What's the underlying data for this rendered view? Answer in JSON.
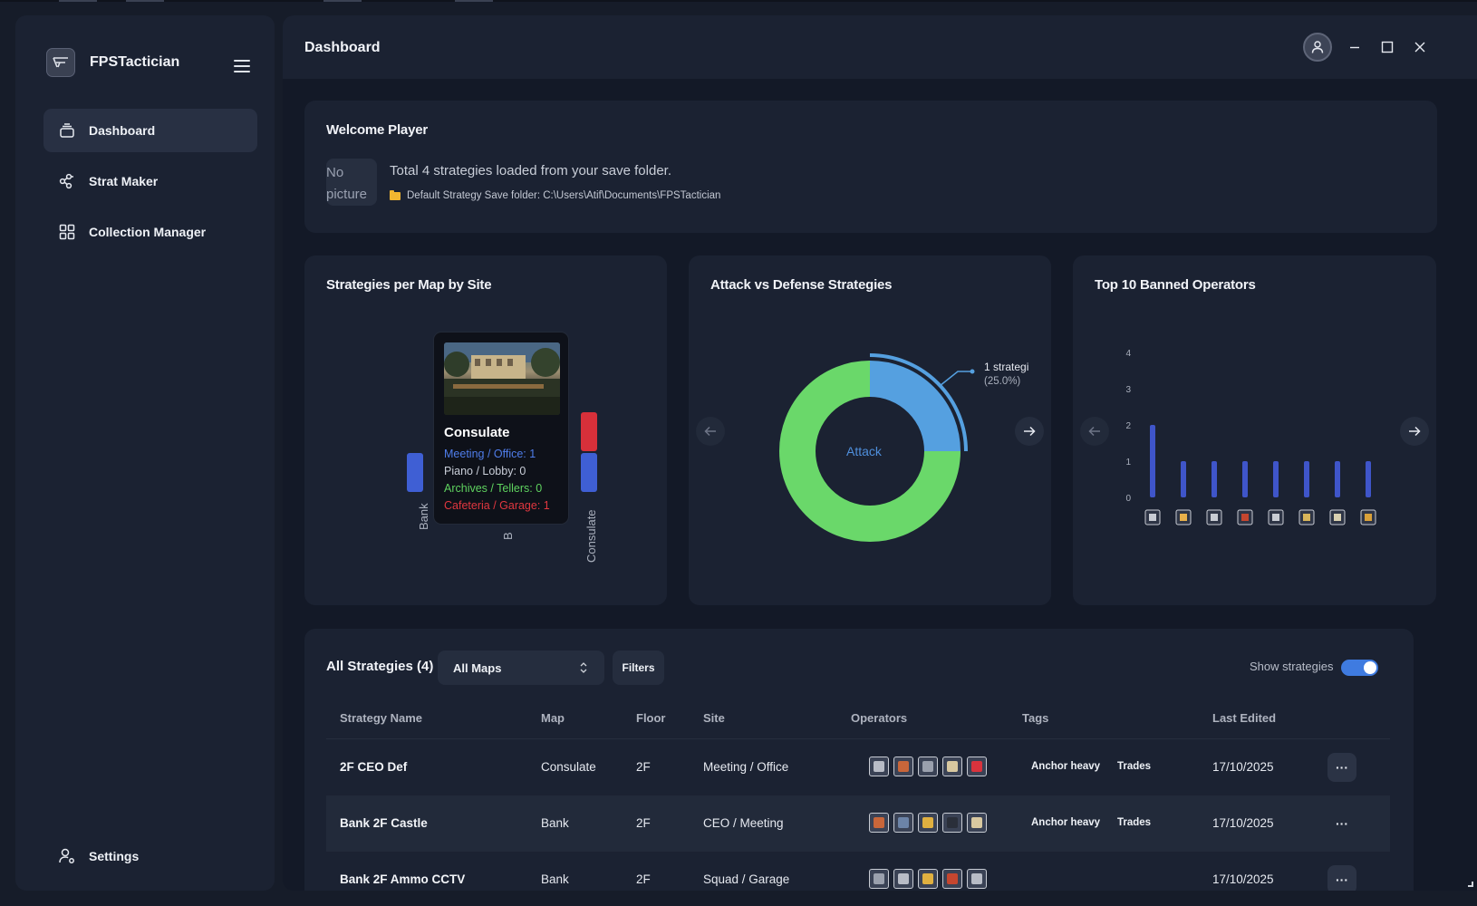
{
  "app": {
    "name": "FPSTactician",
    "page_title": "Dashboard"
  },
  "sidebar": {
    "items": [
      {
        "label": "Dashboard",
        "icon": "stack-icon",
        "active": true
      },
      {
        "label": "Strat Maker",
        "icon": "nodes-icon",
        "active": false
      },
      {
        "label": "Collection Manager",
        "icon": "grid-icon",
        "active": false
      }
    ],
    "settings_label": "Settings"
  },
  "welcome": {
    "title": "Welcome Player",
    "no_picture": "No picture",
    "summary": "Total 4 strategies loaded from your save folder.",
    "folder_text": "Default Strategy Save folder: C:\\Users\\Atif\\Documents\\FPSTactician"
  },
  "map_chart": {
    "title": "Strategies per Map by Site",
    "tooltip": {
      "title": "Consulate",
      "lines": [
        {
          "text": "Meeting / Office: 1",
          "color": "#4f7dea"
        },
        {
          "text": "Piano / Lobby: 0",
          "color": "#c9ced8"
        },
        {
          "text": "Archives / Tellers: 0",
          "color": "#5fd35f"
        },
        {
          "text": "Cafeteria / Garage: 1",
          "color": "#e0373f"
        }
      ]
    },
    "x_labels": [
      "Bank",
      "B",
      "Consulate"
    ]
  },
  "attack_chart": {
    "title": "Attack vs Defense Strategies",
    "center_label": "Attack",
    "callout_line1": "1 strategi",
    "callout_line2": "(25.0%)",
    "colors": {
      "attack": "#55a0e0",
      "defense": "#6ad86a"
    }
  },
  "chart_data": [
    {
      "type": "bar",
      "title": "Strategies per Map by Site",
      "categories": [
        "Bank",
        "B",
        "Consulate"
      ],
      "series": [
        {
          "name": "Meeting / Office",
          "values": [
            1,
            null,
            1
          ]
        },
        {
          "name": "Cafeteria / Garage",
          "values": [
            null,
            null,
            1
          ]
        }
      ]
    },
    {
      "type": "pie",
      "title": "Attack vs Defense Strategies",
      "labels": [
        "Attack",
        "Defense"
      ],
      "values": [
        1,
        3
      ]
    },
    {
      "type": "bar",
      "title": "Top 10 Banned Operators",
      "categories": [
        "op-1",
        "op-2",
        "op-3",
        "op-4",
        "op-5",
        "op-6",
        "op-7",
        "op-8"
      ],
      "values": [
        2,
        1,
        1,
        1,
        1,
        1,
        1,
        1
      ],
      "yticks": [
        "0",
        "1",
        "2",
        "3",
        "4"
      ],
      "ylim": [
        0,
        4
      ]
    }
  ],
  "operators_chart": {
    "title": "Top 10 Banned Operators",
    "bar_color": "#3f55c9",
    "icon_colors": [
      "#c8ccd4",
      "#e8b04a",
      "#c8ccd4",
      "#c5462f",
      "#c8ccd4",
      "#d8b55a",
      "#d8d0b0",
      "#d9a13a"
    ]
  },
  "strategies": {
    "title": "All Strategies (4)",
    "map_select": "All Maps",
    "filters_label": "Filters",
    "show_label": "Show strategies",
    "columns": [
      "Strategy Name",
      "Map",
      "Floor",
      "Site",
      "Operators",
      "Tags",
      "Last Edited"
    ],
    "rows": [
      {
        "name": "2F CEO Def",
        "map": "Consulate",
        "floor": "2F",
        "site": "Meeting / Office",
        "tags": [
          "Anchor heavy",
          "Trades"
        ],
        "edited": "17/10/2025",
        "op_colors": [
          "#b8bcc6",
          "#c8663a",
          "#9aa0ad",
          "#d8c8a0",
          "#d9333d"
        ]
      },
      {
        "name": "Bank 2F Castle",
        "map": "Bank",
        "floor": "2F",
        "site": "CEO / Meeting",
        "tags": [
          "Anchor heavy",
          "Trades"
        ],
        "edited": "17/10/2025",
        "op_colors": [
          "#c8663a",
          "#6c84a8",
          "#e0b040",
          "#2a2f3a",
          "#d8c8a0"
        ]
      },
      {
        "name": "Bank 2F Ammo CCTV",
        "map": "Bank",
        "floor": "2F",
        "site": "Squad / Garage",
        "tags": [
          "",
          ""
        ],
        "edited": "17/10/2025",
        "op_colors": [
          "#9aa0ad",
          "#b8bcc6",
          "#e0b040",
          "#c5462f",
          "#b8bcc6"
        ]
      }
    ]
  }
}
